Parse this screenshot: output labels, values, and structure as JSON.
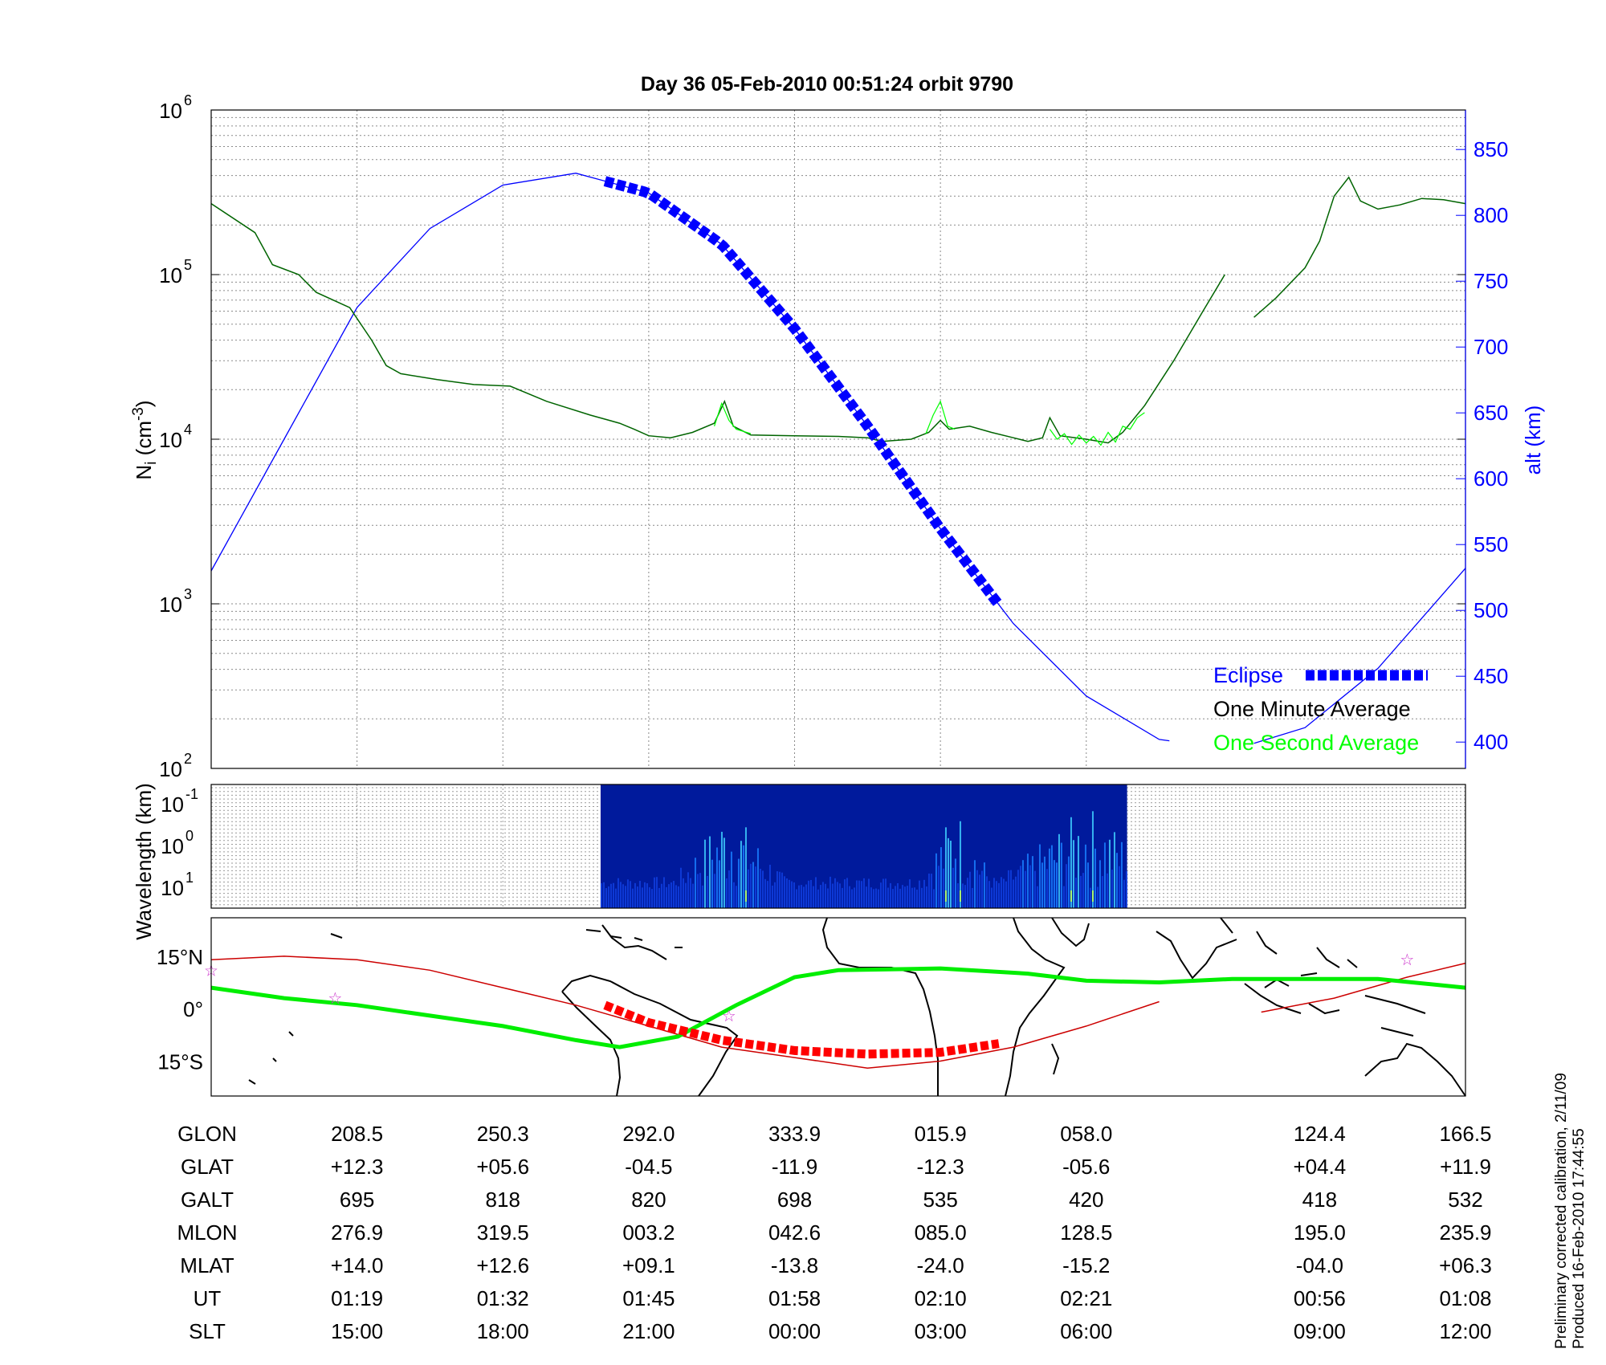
{
  "title": "Day 36  05-Feb-2010 00:51:24   orbit 9790",
  "colors": {
    "density_minute": "#006400",
    "density_second": "#00ff00",
    "altitude": "#0000ff",
    "eclipse": "#0000ff",
    "ground_track": "#cc0000",
    "eclipse_track": "#ff0000",
    "dip_equator": "#00ee00",
    "star": "#cc33cc"
  },
  "chart_data": [
    {
      "type": "line",
      "title": "Day 36  05-Feb-2010 00:51:24   orbit 9790",
      "xlabel": "",
      "ylabel": "Ni (cm-3)",
      "y_scale": "log",
      "ylim": [
        100,
        1000000
      ],
      "y_ticks": [
        {
          "v": 100,
          "base": "10",
          "exp": "2"
        },
        {
          "v": 1000,
          "base": "10",
          "exp": "3"
        },
        {
          "v": 10000,
          "base": "10",
          "exp": "4"
        },
        {
          "v": 100000,
          "base": "10",
          "exp": "5"
        },
        {
          "v": 1000000,
          "base": "10",
          "exp": "6"
        }
      ],
      "y2label": "alt (km)",
      "y2lim": [
        380,
        880
      ],
      "y2_ticks": [
        "400",
        "450",
        "500",
        "550",
        "600",
        "650",
        "700",
        "750",
        "800",
        "850"
      ],
      "xlim": [
        0,
        8.6
      ],
      "x_grid": [
        1,
        2,
        3,
        4,
        5,
        6
      ],
      "grid": true,
      "legend_position": "bottom-right",
      "legend": [
        {
          "label": "Eclipse",
          "color": "#0000ff",
          "style": "thick-dash"
        },
        {
          "label": "One Minute Average",
          "color": "#000000"
        },
        {
          "label": "One Second Average",
          "color": "#00ff00"
        }
      ],
      "series": [
        {
          "name": "One Minute Average",
          "axis": "left",
          "segments": [
            [
              [
                0,
                270000
              ],
              [
                0.3,
                180000
              ],
              [
                0.42,
                115000
              ],
              [
                0.6,
                100000
              ],
              [
                0.72,
                78000
              ],
              [
                0.95,
                63000
              ],
              [
                1.1,
                40000
              ],
              [
                1.2,
                28000
              ],
              [
                1.3,
                25000
              ],
              [
                1.55,
                23000
              ],
              [
                1.8,
                21500
              ],
              [
                2.05,
                21000
              ],
              [
                2.3,
                17000
              ],
              [
                2.6,
                14000
              ],
              [
                2.8,
                12500
              ],
              [
                2.9,
                11500
              ],
              [
                3.0,
                10500
              ],
              [
                3.15,
                10200
              ],
              [
                3.3,
                11000
              ],
              [
                3.45,
                12500
              ],
              [
                3.52,
                17000
              ],
              [
                3.58,
                12000
              ],
              [
                3.7,
                10600
              ],
              [
                4.0,
                10500
              ],
              [
                4.3,
                10400
              ],
              [
                4.5,
                10200
              ],
              [
                4.6,
                9700
              ],
              [
                4.8,
                10000
              ],
              [
                4.92,
                11000
              ],
              [
                5.0,
                13000
              ],
              [
                5.06,
                11500
              ],
              [
                5.2,
                12000
              ],
              [
                5.35,
                11000
              ],
              [
                5.5,
                10200
              ],
              [
                5.6,
                9700
              ],
              [
                5.7,
                10200
              ],
              [
                5.75,
                13500
              ],
              [
                5.82,
                10500
              ],
              [
                6.0,
                10000
              ],
              [
                6.15,
                9500
              ],
              [
                6.25,
                11000
              ],
              [
                6.4,
                16000
              ],
              [
                6.6,
                30000
              ],
              [
                6.8,
                60000
              ],
              [
                6.95,
                100000
              ]
            ],
            [
              [
                7.15,
                55000
              ],
              [
                7.3,
                72000
              ],
              [
                7.5,
                110000
              ],
              [
                7.6,
                160000
              ],
              [
                7.7,
                300000
              ],
              [
                7.8,
                390000
              ],
              [
                7.88,
                280000
              ],
              [
                8.0,
                250000
              ],
              [
                8.15,
                265000
              ],
              [
                8.3,
                290000
              ],
              [
                8.45,
                285000
              ],
              [
                8.6,
                270000
              ]
            ]
          ]
        },
        {
          "name": "One Second Average",
          "axis": "left",
          "segments": [
            [
              [
                3.45,
                12000
              ],
              [
                3.5,
                16500
              ],
              [
                3.55,
                13000
              ],
              [
                3.6,
                11500
              ],
              [
                3.7,
                10800
              ]
            ],
            [
              [
                4.9,
                10800
              ],
              [
                4.95,
                14000
              ],
              [
                5.0,
                17000
              ],
              [
                5.05,
                12000
              ],
              [
                5.1,
                11500
              ]
            ],
            [
              [
                5.75,
                11500
              ],
              [
                5.8,
                10000
              ],
              [
                5.85,
                10800
              ],
              [
                5.9,
                9300
              ],
              [
                5.95,
                10600
              ],
              [
                6.0,
                9500
              ],
              [
                6.05,
                10400
              ],
              [
                6.1,
                9200
              ],
              [
                6.15,
                11000
              ],
              [
                6.2,
                9600
              ],
              [
                6.25,
                12000
              ],
              [
                6.3,
                11500
              ],
              [
                6.35,
                13500
              ],
              [
                6.4,
                14500
              ]
            ]
          ]
        },
        {
          "name": "alt (km)",
          "axis": "right",
          "points": [
            [
              0,
              530
            ],
            [
              0.5,
              630
            ],
            [
              1,
              730
            ],
            [
              1.5,
              790
            ],
            [
              2,
              823
            ],
            [
              2.5,
              832
            ],
            [
              3,
              817
            ],
            [
              3.5,
              778
            ],
            [
              4,
              714
            ],
            [
              4.5,
              640
            ],
            [
              5,
              562
            ],
            [
              5.5,
              490
            ],
            [
              6,
              435
            ],
            [
              6.5,
              402
            ],
            [
              6.57,
              401
            ]
          ],
          "points_tail": [
            [
              7.15,
              399
            ],
            [
              7.5,
              411
            ],
            [
              8,
              456
            ],
            [
              8.6,
              532
            ]
          ]
        }
      ],
      "eclipse_x": [
        2.7,
        5.4
      ]
    },
    {
      "type": "heatmap",
      "ylabel": "Wavelength (km)",
      "y_scale": "log",
      "y_ticks": [
        {
          "base": "10",
          "exp": "-1"
        },
        {
          "base": "10",
          "exp": "0"
        },
        {
          "base": "10",
          "exp": "1"
        }
      ],
      "x_data_range": [
        2.67,
        6.28
      ]
    },
    {
      "type": "map",
      "y_ticks": [
        "15°N",
        "0°",
        "15°S"
      ],
      "ylim": [
        -25,
        26
      ],
      "xlim": [
        0,
        8.6
      ],
      "ground_track": [
        [
          0,
          14
        ],
        [
          0.5,
          15
        ],
        [
          1,
          14
        ],
        [
          1.5,
          11
        ],
        [
          2,
          6
        ],
        [
          2.5,
          1
        ],
        [
          3,
          -5
        ],
        [
          3.5,
          -11
        ],
        [
          4,
          -14
        ],
        [
          4.5,
          -17
        ],
        [
          5,
          -15
        ],
        [
          5.5,
          -11
        ],
        [
          6,
          -5
        ],
        [
          6.5,
          2
        ]
      ],
      "ground_track_tail": [
        [
          7.2,
          -1
        ],
        [
          7.7,
          3
        ],
        [
          8.2,
          9
        ],
        [
          8.6,
          13
        ]
      ],
      "eclipse_track": [
        [
          2.7,
          1
        ],
        [
          3,
          -4
        ],
        [
          3.5,
          -9
        ],
        [
          4,
          -12
        ],
        [
          4.5,
          -13
        ],
        [
          5,
          -12.5
        ],
        [
          5.4,
          -10
        ]
      ],
      "dip_equator": [
        [
          0,
          6
        ],
        [
          0.5,
          3
        ],
        [
          1,
          1
        ],
        [
          1.5,
          -2
        ],
        [
          2,
          -5
        ],
        [
          2.5,
          -9
        ],
        [
          2.8,
          -11
        ],
        [
          3.2,
          -8
        ],
        [
          3.6,
          1
        ],
        [
          4,
          9
        ],
        [
          4.3,
          11
        ],
        [
          5,
          11.5
        ],
        [
          5.6,
          10
        ],
        [
          6,
          8
        ],
        [
          6.5,
          7.5
        ],
        [
          7,
          8.5
        ],
        [
          7.5,
          8.5
        ],
        [
          8,
          8.5
        ],
        [
          8.6,
          6
        ]
      ],
      "stars": [
        [
          0,
          11
        ],
        [
          0.85,
          3
        ],
        [
          3.55,
          -2
        ],
        [
          8.2,
          14
        ]
      ]
    }
  ],
  "table": {
    "labels": [
      "GLON",
      "GLAT",
      "GALT",
      "MLON",
      "MLAT",
      "UT",
      "SLT"
    ],
    "columns": [
      {
        "x": 1,
        "values": [
          "208.5",
          "+12.3",
          "695",
          "276.9",
          "+14.0",
          "01:19",
          "15:00"
        ]
      },
      {
        "x": 2,
        "values": [
          "250.3",
          "+05.6",
          "818",
          "319.5",
          "+12.6",
          "01:32",
          "18:00"
        ]
      },
      {
        "x": 3,
        "values": [
          "292.0",
          "-04.5",
          "820",
          "003.2",
          "+09.1",
          "01:45",
          "21:00"
        ]
      },
      {
        "x": 4,
        "values": [
          "333.9",
          "-11.9",
          "698",
          "042.6",
          "-13.8",
          "01:58",
          "00:00"
        ]
      },
      {
        "x": 5,
        "values": [
          "015.9",
          "-12.3",
          "535",
          "085.0",
          "-24.0",
          "02:10",
          "03:00"
        ]
      },
      {
        "x": 6,
        "values": [
          "058.0",
          "-05.6",
          "420",
          "128.5",
          "-15.2",
          "02:21",
          "06:00"
        ]
      },
      {
        "x": 7.6,
        "values": [
          "124.4",
          "+04.4",
          "418",
          "195.0",
          "-04.0",
          "00:56",
          "09:00"
        ]
      },
      {
        "x": 8.6,
        "values": [
          "166.5",
          "+11.9",
          "532",
          "235.9",
          "+06.3",
          "01:08",
          "12:00"
        ]
      }
    ]
  },
  "side_text": {
    "line1": "Preliminary corrected calibration, 2/11/09",
    "line2": "Produced 16-Feb-2010 17:44:55"
  }
}
